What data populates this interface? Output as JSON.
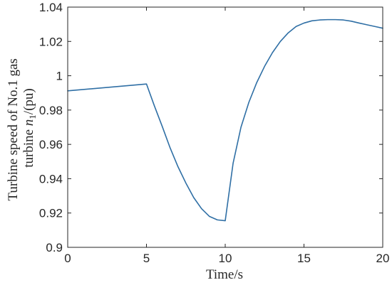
{
  "chart_data": {
    "type": "line",
    "xlabel": "Time/s",
    "ylabel_line1": "Turbine speed of No.1 gas",
    "ylabel_line2_prefix": "turbine ",
    "ylabel_var": "n",
    "ylabel_sub": "1",
    "ylabel_line2_suffix": "/(pu)",
    "xlim": [
      0,
      20
    ],
    "ylim": [
      0.9,
      1.04
    ],
    "x_ticks": [
      0,
      5,
      10,
      15,
      20
    ],
    "x_tick_labels": [
      "0",
      "5",
      "10",
      "15",
      "20"
    ],
    "y_ticks": [
      0.9,
      0.92,
      0.94,
      0.96,
      0.98,
      1.0,
      1.02,
      1.04
    ],
    "y_tick_labels": [
      "0.9",
      "0.92",
      "0.94",
      "0.96",
      "0.98",
      "1",
      "1.02",
      "1.04"
    ],
    "grid": false,
    "line_color": "#2f6fa5",
    "series": [
      {
        "x": [
          0,
          5,
          5.5,
          6,
          6.5,
          7,
          7.5,
          8,
          8.5,
          9,
          9.5,
          10,
          10.5,
          11,
          11.5,
          12,
          12.5,
          13,
          13.5,
          14,
          14.5,
          15,
          15.5,
          16,
          16.5,
          17,
          17.5,
          18,
          18.5,
          19,
          19.5,
          20
        ],
        "values": [
          0.9912,
          0.9952,
          0.9825,
          0.9705,
          0.958,
          0.947,
          0.9375,
          0.929,
          0.9225,
          0.918,
          0.916,
          0.9155,
          0.949,
          0.97,
          0.9845,
          0.996,
          1.0055,
          1.0135,
          1.02,
          1.025,
          1.0287,
          1.0307,
          1.032,
          1.0325,
          1.0327,
          1.0327,
          1.0325,
          1.0318,
          1.0307,
          1.0297,
          1.0287,
          1.0277
        ]
      }
    ]
  }
}
